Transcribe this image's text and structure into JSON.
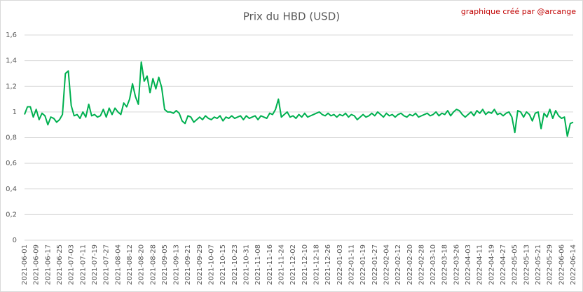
{
  "chart_data": {
    "type": "line",
    "title": "Prix du HBD (USD)",
    "annotation": "graphique créé par @arcange",
    "x": [
      "2021-06-01",
      null,
      null,
      null,
      "2021-06-09",
      null,
      null,
      null,
      "2021-06-17",
      null,
      null,
      null,
      "2021-06-25",
      null,
      null,
      null,
      "2021-07-03",
      null,
      null,
      null,
      "2021-07-11",
      null,
      null,
      null,
      "2021-07-19",
      null,
      null,
      null,
      "2021-07-27",
      null,
      null,
      null,
      "2021-08-04",
      null,
      null,
      null,
      "2021-08-12",
      null,
      null,
      null,
      "2021-08-20",
      null,
      null,
      null,
      "2021-08-28",
      null,
      null,
      null,
      "2021-09-05",
      null,
      null,
      null,
      "2021-09-13",
      null,
      null,
      null,
      "2021-09-21",
      null,
      null,
      null,
      "2021-09-29",
      null,
      null,
      null,
      "2021-10-07",
      null,
      null,
      null,
      "2021-10-15",
      null,
      null,
      null,
      "2021-10-23",
      null,
      null,
      null,
      "2021-10-31",
      null,
      null,
      null,
      "2021-11-08",
      null,
      null,
      null,
      "2021-11-16",
      null,
      null,
      null,
      "2021-11-24",
      null,
      null,
      null,
      "2021-12-02",
      null,
      null,
      null,
      "2021-12-10",
      null,
      null,
      null,
      "2021-12-18",
      null,
      null,
      null,
      "2021-12-26",
      null,
      null,
      null,
      "2022-01-03",
      null,
      null,
      null,
      "2022-01-11",
      null,
      null,
      null,
      "2022-01-19",
      null,
      null,
      null,
      "2022-01-27",
      null,
      null,
      null,
      "2022-02-04",
      null,
      null,
      null,
      "2022-02-12",
      null,
      null,
      null,
      "2022-02-20",
      null,
      null,
      null,
      "2022-02-28",
      null,
      null,
      null,
      "2022-03-10",
      null,
      null,
      null,
      "2022-03-18",
      null,
      null,
      null,
      "2022-03-26",
      null,
      null,
      null,
      "2022-04-03",
      null,
      null,
      null,
      "2022-04-11",
      null,
      null,
      null,
      "2022-04-19",
      null,
      null,
      null,
      "2022-04-27",
      null,
      null,
      null,
      "2022-05-05",
      null,
      null,
      null,
      "2022-05-13",
      null,
      null,
      null,
      "2022-05-21",
      null,
      null,
      null,
      "2022-05-29",
      null,
      null,
      null,
      "2022-06-06",
      null,
      null,
      null,
      "2022-06-14"
    ],
    "series": [
      {
        "color": "#00b050",
        "values": [
          0.98,
          1.04,
          1.04,
          0.96,
          1.02,
          0.94,
          0.99,
          0.97,
          0.9,
          0.96,
          0.95,
          0.92,
          0.94,
          0.98,
          1.3,
          1.32,
          1.05,
          0.97,
          0.98,
          0.95,
          1.0,
          0.96,
          1.06,
          0.97,
          0.98,
          0.96,
          0.97,
          1.02,
          0.96,
          1.03,
          0.98,
          1.03,
          1.0,
          0.98,
          1.07,
          1.04,
          1.1,
          1.22,
          1.12,
          1.06,
          1.39,
          1.24,
          1.28,
          1.15,
          1.26,
          1.18,
          1.27,
          1.19,
          1.02,
          1.0,
          1.0,
          0.99,
          1.01,
          0.99,
          0.93,
          0.91,
          0.97,
          0.96,
          0.92,
          0.94,
          0.96,
          0.94,
          0.97,
          0.95,
          0.94,
          0.96,
          0.95,
          0.97,
          0.93,
          0.96,
          0.95,
          0.97,
          0.95,
          0.96,
          0.97,
          0.94,
          0.97,
          0.95,
          0.96,
          0.97,
          0.94,
          0.97,
          0.96,
          0.95,
          0.99,
          0.98,
          1.02,
          1.1,
          0.96,
          0.98,
          1.0,
          0.96,
          0.97,
          0.95,
          0.98,
          0.96,
          0.99,
          0.96,
          0.97,
          0.98,
          0.99,
          1.0,
          0.98,
          0.97,
          0.99,
          0.97,
          0.98,
          0.96,
          0.98,
          0.97,
          0.99,
          0.96,
          0.98,
          0.97,
          0.94,
          0.96,
          0.98,
          0.96,
          0.97,
          0.99,
          0.97,
          1.0,
          0.98,
          0.96,
          0.99,
          0.97,
          0.98,
          0.96,
          0.98,
          0.99,
          0.97,
          0.96,
          0.98,
          0.97,
          0.99,
          0.96,
          0.97,
          0.98,
          0.99,
          0.97,
          0.98,
          1.0,
          0.97,
          0.99,
          0.98,
          1.01,
          0.97,
          1.0,
          1.02,
          1.01,
          0.98,
          0.96,
          0.98,
          1.0,
          0.97,
          1.01,
          0.99,
          1.02,
          0.98,
          1.0,
          0.99,
          1.02,
          0.98,
          0.99,
          0.97,
          0.99,
          1.0,
          0.96,
          0.84,
          1.01,
          1.0,
          0.96,
          1.0,
          0.98,
          0.93,
          0.99,
          1.0,
          0.87,
          0.99,
          0.96,
          1.02,
          0.95,
          1.01,
          0.97,
          0.95,
          0.96,
          0.81,
          0.91,
          0.92
        ]
      }
    ],
    "ylim": [
      0,
      1.6
    ],
    "yticks": [
      0,
      {
        "value": 0.2,
        "label": "0,2"
      },
      {
        "value": 0.4,
        "label": "0,4"
      },
      {
        "value": 0.6,
        "label": "0,6"
      },
      {
        "value": 0.8,
        "label": "0,8"
      },
      1,
      {
        "value": 1.2,
        "label": "1,2"
      },
      {
        "value": 1.4,
        "label": "1,4"
      },
      {
        "value": 1.6,
        "label": "1,6"
      }
    ],
    "grid": true
  }
}
